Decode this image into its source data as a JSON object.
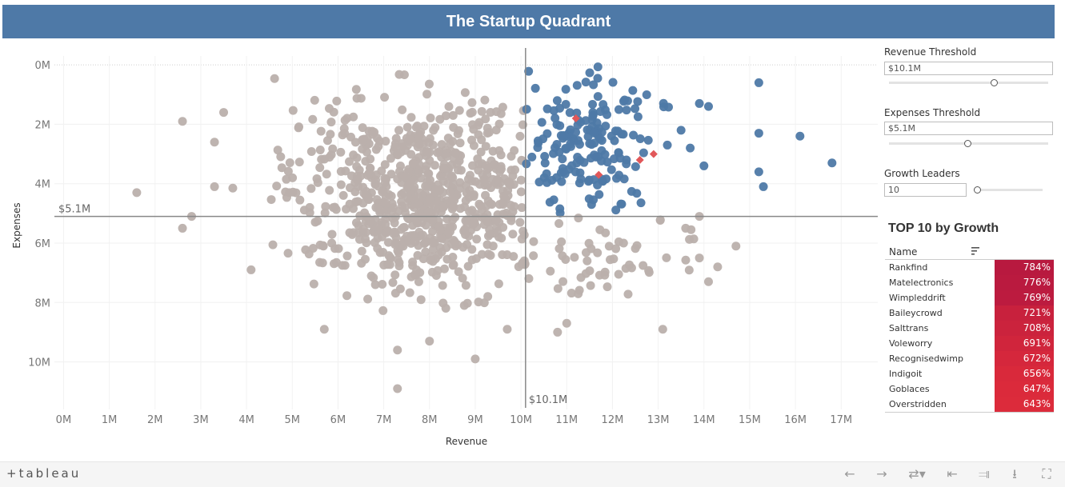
{
  "title": "The Startup Quadrant",
  "controls": {
    "revenue_threshold": {
      "label": "Revenue Threshold",
      "value": "$10.1M",
      "slider_level": 0.66
    },
    "expenses_threshold": {
      "label": "Expenses Threshold",
      "value": "$5.1M",
      "slider_level": 0.49
    },
    "growth_leaders": {
      "label": "Growth Leaders",
      "value": "10",
      "slider_level": 0.0
    }
  },
  "top10": {
    "title": "TOP 10 by Growth",
    "column_name": "Name",
    "rows": [
      {
        "name": "Rankfind",
        "value": "784%"
      },
      {
        "name": "Matelectronics",
        "value": "776%"
      },
      {
        "name": "Wimpleddrift",
        "value": "769%"
      },
      {
        "name": "Baileycrowd",
        "value": "721%"
      },
      {
        "name": "Salttrans",
        "value": "708%"
      },
      {
        "name": "Voleworry",
        "value": "691%"
      },
      {
        "name": "Recognisedwimp",
        "value": "672%"
      },
      {
        "name": "Indigoit",
        "value": "656%"
      },
      {
        "name": "Goblaces",
        "value": "647%"
      },
      {
        "name": "Overstridden",
        "value": "643%"
      }
    ]
  },
  "footer": {
    "logo": "+tableau"
  },
  "colors": {
    "header": "#4e79a7",
    "blue_points": "#4e79a7",
    "gray_points": "#bab0ac",
    "leaders": "#e15759",
    "heat_high": "#b8193f",
    "heat_low": "#dc2b3b"
  },
  "chart_data": {
    "type": "scatter",
    "xlabel": "Revenue",
    "ylabel": "Expenses",
    "xlim": [
      -0.2,
      17.8
    ],
    "ylim": [
      11.6,
      -0.3
    ],
    "x_ticks": [
      "0M",
      "1M",
      "2M",
      "3M",
      "4M",
      "5M",
      "6M",
      "7M",
      "8M",
      "9M",
      "10M",
      "11M",
      "12M",
      "13M",
      "14M",
      "15M",
      "16M",
      "17M"
    ],
    "y_ticks": [
      "0M",
      "2M",
      "4M",
      "6M",
      "8M",
      "10M"
    ],
    "ref_lines": {
      "x": 10.1,
      "x_label": "$10.1M",
      "y": 5.1,
      "y_label": "$5.1M"
    },
    "grid": true,
    "clusters": [
      {
        "name": "gray",
        "cx": 7.9,
        "cy": 4.4,
        "sx": 1.45,
        "sy": 1.55,
        "count": 760,
        "xmin": 4.4,
        "xmax": 10.1,
        "ymin": 0,
        "ymax": 8.3
      },
      {
        "name": "blue",
        "cx": 11.4,
        "cy": 2.6,
        "sx": 0.8,
        "sy": 1.25,
        "count": 170,
        "xmin": 10.1,
        "xmax": 13.3,
        "ymin": 0,
        "ymax": 5.0
      },
      {
        "name": "gray_right",
        "cx": 11.8,
        "cy": 6.6,
        "sx": 1.1,
        "sy": 0.9,
        "count": 55,
        "xmin": 10.1,
        "xmax": 14.5,
        "ymin": 5.1,
        "ymax": 7.8
      }
    ],
    "outliers_gray": [
      {
        "x": 1.6,
        "y": 4.3
      },
      {
        "x": 2.6,
        "y": 1.9
      },
      {
        "x": 2.6,
        "y": 5.5
      },
      {
        "x": 2.8,
        "y": 5.1
      },
      {
        "x": 3.3,
        "y": 2.6
      },
      {
        "x": 3.3,
        "y": 4.1
      },
      {
        "x": 3.5,
        "y": 1.6
      },
      {
        "x": 3.7,
        "y": 4.15
      },
      {
        "x": 4.1,
        "y": 6.9
      },
      {
        "x": 7.3,
        "y": 10.9
      },
      {
        "x": 9.0,
        "y": 9.9
      },
      {
        "x": 8.0,
        "y": 9.3
      },
      {
        "x": 7.3,
        "y": 9.6
      },
      {
        "x": 5.7,
        "y": 8.9
      },
      {
        "x": 13.1,
        "y": 8.9
      },
      {
        "x": 11.0,
        "y": 8.7
      },
      {
        "x": 10.8,
        "y": 9.0
      },
      {
        "x": 14.7,
        "y": 6.1
      },
      {
        "x": 14.1,
        "y": 7.3
      },
      {
        "x": 14.3,
        "y": 6.8
      },
      {
        "x": 13.9,
        "y": 6.5
      },
      {
        "x": 13.9,
        "y": 5.1
      },
      {
        "x": 13.6,
        "y": 5.5
      },
      {
        "x": 9.7,
        "y": 8.9
      }
    ],
    "outliers_blue": [
      {
        "x": 15.2,
        "y": 0.6
      },
      {
        "x": 15.2,
        "y": 2.3
      },
      {
        "x": 16.1,
        "y": 2.4
      },
      {
        "x": 16.8,
        "y": 3.3
      },
      {
        "x": 15.2,
        "y": 3.6
      },
      {
        "x": 15.3,
        "y": 4.1
      },
      {
        "x": 14.0,
        "y": 3.4
      },
      {
        "x": 14.1,
        "y": 1.4
      },
      {
        "x": 13.9,
        "y": 1.3
      },
      {
        "x": 13.7,
        "y": 2.8
      },
      {
        "x": 13.5,
        "y": 2.2
      },
      {
        "x": 13.2,
        "y": 2.7
      }
    ],
    "leaders": [
      {
        "x": 11.2,
        "y": 1.8
      },
      {
        "x": 12.6,
        "y": 3.2
      },
      {
        "x": 12.9,
        "y": 3.0
      },
      {
        "x": 11.7,
        "y": 3.7
      }
    ]
  }
}
